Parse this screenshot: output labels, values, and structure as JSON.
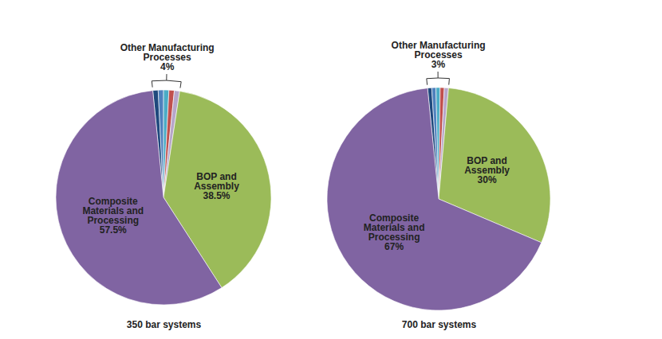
{
  "chart_data": [
    {
      "type": "pie",
      "caption": "350 bar systems",
      "categories": [
        null,
        null,
        null,
        null,
        null,
        "BOP and Assembly",
        "Composite Materials and Processing"
      ],
      "values": [
        0.8,
        0.8,
        0.8,
        0.8,
        0.8,
        38.5,
        57.5
      ],
      "value_labels": [
        null,
        null,
        null,
        null,
        null,
        "38.5%",
        "57.5%"
      ],
      "colors": [
        "#1f497d",
        "#4f81bd",
        "#4bacc6",
        "#c0504d",
        "#b7a6c9",
        "#9bbb59",
        "#8064a2"
      ],
      "data_labels": true,
      "annotations": [
        {
          "text": "Other Manufacturing Processes",
          "value": 4,
          "label": "4%"
        }
      ]
    },
    {
      "type": "pie",
      "caption": "700 bar systems",
      "categories": [
        null,
        null,
        null,
        null,
        null,
        "BOP and Assembly",
        "Composite Materials and Processing"
      ],
      "values": [
        0.6,
        0.6,
        0.6,
        0.6,
        0.6,
        30,
        67
      ],
      "value_labels": [
        null,
        null,
        null,
        null,
        null,
        "30%",
        "67%"
      ],
      "colors": [
        "#1f497d",
        "#4f81bd",
        "#4bacc6",
        "#c0504d",
        "#b7a6c9",
        "#9bbb59",
        "#8064a2"
      ],
      "data_labels": true,
      "annotations": [
        {
          "text": "Other Manufacturing Processes",
          "value": 3,
          "label": "3%"
        }
      ]
    }
  ]
}
